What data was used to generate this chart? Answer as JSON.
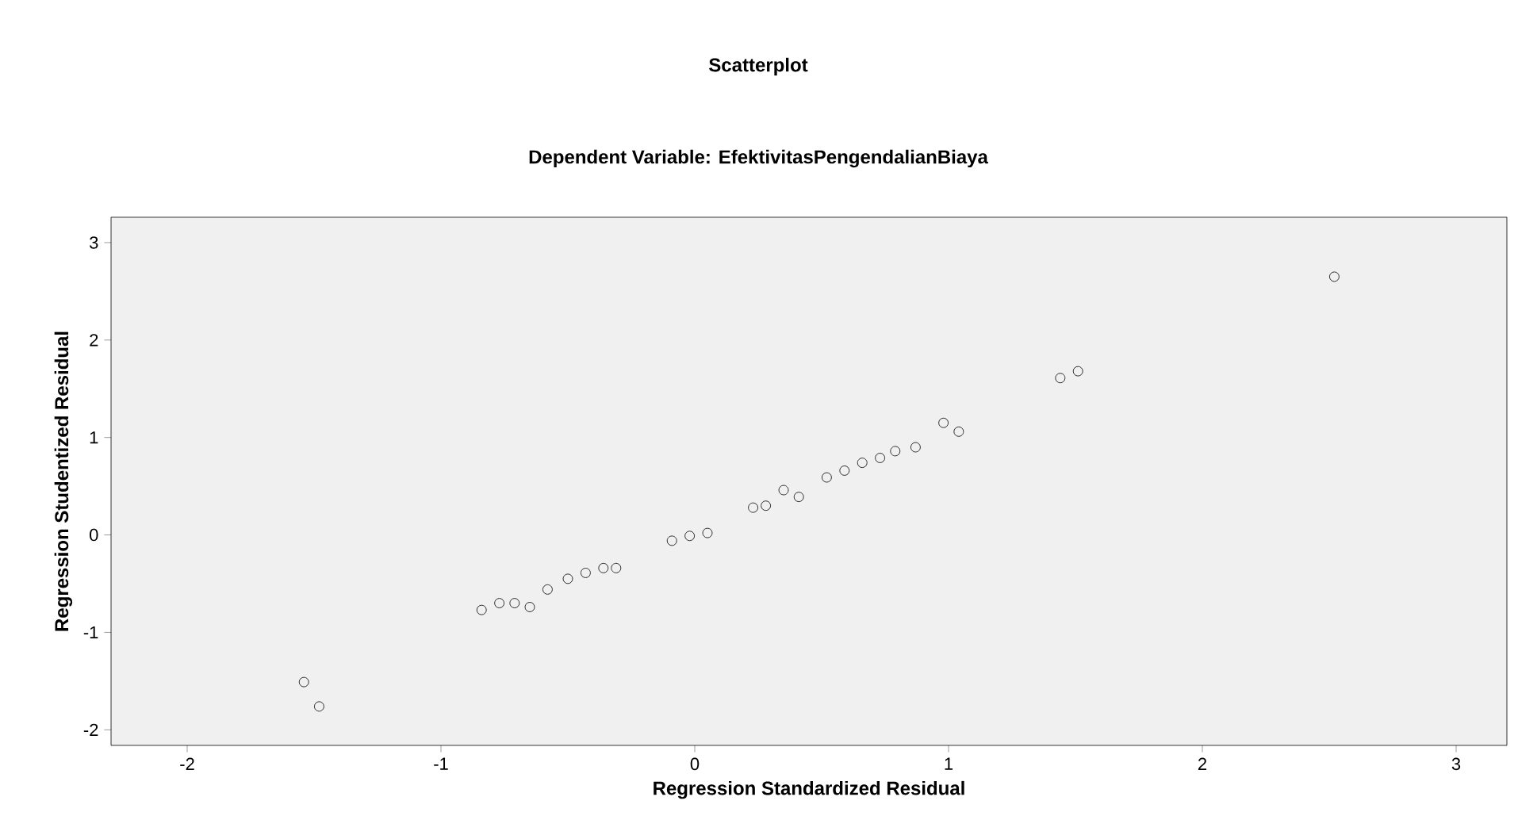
{
  "chart_data": {
    "type": "scatter",
    "title": "Scatterplot",
    "subtitle": "Dependent Variable: EfektivitasPengendalianBiaya",
    "xlabel": "Regression Standardized Residual",
    "ylabel": "Regression Studentized Residual",
    "x": [
      -1.54,
      -1.48,
      -0.84,
      -0.77,
      -0.71,
      -0.65,
      -0.58,
      -0.5,
      -0.43,
      -0.36,
      -0.31,
      -0.09,
      -0.02,
      0.05,
      0.23,
      0.28,
      0.35,
      0.41,
      0.52,
      0.59,
      0.66,
      0.73,
      0.79,
      0.87,
      0.98,
      1.04,
      1.44,
      1.51,
      2.52
    ],
    "values": [
      -1.51,
      -1.76,
      -0.77,
      -0.7,
      -0.7,
      -0.74,
      -0.56,
      -0.45,
      -0.39,
      -0.34,
      -0.34,
      -0.06,
      -0.01,
      0.02,
      0.28,
      0.3,
      0.46,
      0.39,
      0.59,
      0.66,
      0.74,
      0.79,
      0.86,
      0.9,
      1.15,
      1.06,
      1.61,
      1.68,
      2.65
    ],
    "color": "#000000",
    "marker": "circle",
    "grid": false,
    "xlim": [
      -2.3,
      3.2
    ],
    "xticks": [
      -2,
      -1,
      0,
      1,
      2,
      3
    ],
    "ylim": [
      -2.16,
      3.26
    ],
    "yticks": [
      -2,
      -1,
      0,
      1,
      2,
      3
    ]
  }
}
